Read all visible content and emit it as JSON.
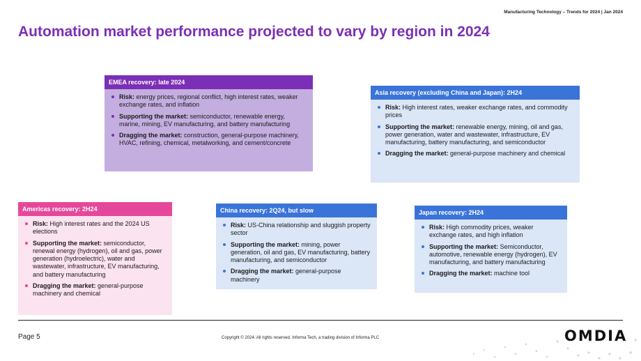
{
  "header": {
    "note": "Manufacturing Technology – Trends for 2024 | Jan 2024"
  },
  "title": "Automation market performance projected to vary by region in 2024",
  "colors": {
    "title": "#7b2fb6",
    "emea": "#7b2fb6",
    "asia": "#3b74d9",
    "americas": "#e5489b",
    "china": "#3b74d9",
    "japan": "#3b74d9"
  },
  "cards": {
    "emea": {
      "heading": "EMEA recovery: late 2024",
      "items": [
        {
          "label": "Risk:",
          "text": " energy prices, regional conflict, high interest rates, weaker exchange rates, and inflation"
        },
        {
          "label": "Supporting the market:",
          "text": " semiconductor, renewable energy, marine, mining, EV manufacturing, and battery manufacturing"
        },
        {
          "label": "Dragging the market:",
          "text": " construction, general-purpose machinery, HVAC, refining, chemical, metalworking, and cement/concrete"
        }
      ]
    },
    "asia": {
      "heading": "Asia recovery (excluding China and Japan): 2H24",
      "items": [
        {
          "label": "Risk:",
          "text": " High interest rates, weaker exchange rates, and commodity prices"
        },
        {
          "label": "Supporting the market:",
          "text": " renewable energy, mining, oil and gas, power generation, water and wastewater, infrastructure, EV manufacturing, battery manufacturing, and semiconductor"
        },
        {
          "label": "Dragging the market:",
          "text": " general-purpose machinery and chemical"
        }
      ]
    },
    "americas": {
      "heading": "Americas recovery: 2H24",
      "items": [
        {
          "label": "Risk:",
          "text": " High interest rates and the 2024 US elections"
        },
        {
          "label": "Supporting the market:",
          "text": " semiconductor, renewal energy (hydrogen), oil and gas, power generation (hydroelectric), water and wastewater, infrastructure, EV manufacturing, and battery manufacturing"
        },
        {
          "label": "Dragging the market:",
          "text": " general-purpose machinery and chemical"
        }
      ]
    },
    "china": {
      "heading": "China recovery: 2Q24, but slow",
      "items": [
        {
          "label": "Risk:",
          "text": " US-China relationship and sluggish property sector"
        },
        {
          "label": "Supporting the market:",
          "text": " mining, power generation, oil and gas, EV manufacturing, battery manufacturing, and semiconductor"
        },
        {
          "label": "Dragging the market:",
          "text": " general-purpose machinery"
        }
      ]
    },
    "japan": {
      "heading": "Japan recovery: 2H24",
      "items": [
        {
          "label": "Risk:",
          "text": " High commodity prices, weaker exchange rates, and high inflation"
        },
        {
          "label": "Supporting the market:",
          "text": " Semiconductor, automotive, renewable energy (hydrogen), EV manufacturing, and battery manufacturing"
        },
        {
          "label": "Dragging the market:",
          "text": " machine tool"
        }
      ]
    }
  },
  "footer": {
    "page": "Page 5",
    "copyright": "Copyright © 2024. All rights reserved. Informa Tech, a trading division of Informa PLC",
    "logo": "OMDIA"
  }
}
